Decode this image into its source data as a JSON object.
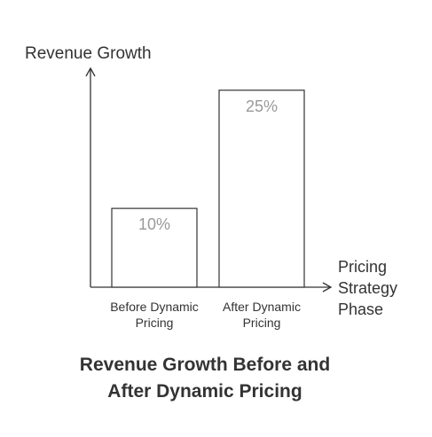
{
  "chart_data": {
    "type": "bar",
    "title_lines": [
      "Revenue Growth Before and",
      "After Dynamic Pricing"
    ],
    "ylabel": "Revenue Growth",
    "xlabel_lines": [
      "Pricing",
      "Strategy",
      "Phase"
    ],
    "categories": [
      [
        "Before Dynamic",
        "Pricing"
      ],
      [
        "After Dynamic",
        "Pricing"
      ]
    ],
    "values": [
      10,
      25
    ],
    "value_labels": [
      "10%",
      "25%"
    ],
    "ylim": [
      0,
      27
    ],
    "grid": false,
    "legend": "none"
  }
}
